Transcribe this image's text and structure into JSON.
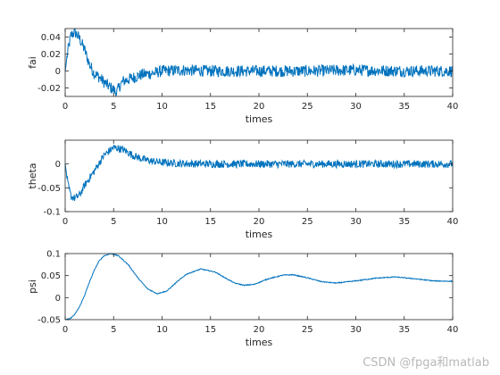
{
  "watermark": "CSDN @fpga和matlab",
  "chart_data": [
    {
      "type": "line",
      "title": "",
      "xlabel": "times",
      "ylabel": "fai",
      "xlim": [
        0,
        40
      ],
      "ylim": [
        -0.03,
        0.05
      ],
      "xticks": [
        0,
        5,
        10,
        15,
        20,
        25,
        30,
        35,
        40
      ],
      "yticks": [
        -0.02,
        0,
        0.02,
        0.04
      ],
      "ytick_labels": [
        "-0.02",
        "0",
        "0.02",
        "0.04"
      ],
      "grid": false,
      "color": "#0072BD",
      "series": [
        {
          "x": [
            0,
            0.3,
            0.6,
            1,
            1.5,
            2,
            2.5,
            3,
            3.5,
            4,
            4.5,
            5,
            5.3,
            5.6,
            6,
            7,
            8,
            9,
            10,
            12,
            15,
            20,
            25,
            30,
            35,
            40
          ],
          "values": [
            0,
            0.025,
            0.042,
            0.046,
            0.038,
            0.025,
            0.008,
            -0.003,
            -0.007,
            -0.013,
            -0.018,
            -0.022,
            -0.026,
            -0.018,
            -0.012,
            -0.008,
            -0.004,
            -0.003,
            0.0,
            0.001,
            0.0,
            0.0,
            0.0,
            0.001,
            0.0,
            0.0
          ],
          "noise_amplitude": 0.007
        }
      ]
    },
    {
      "type": "line",
      "title": "",
      "xlabel": "times",
      "ylabel": "theta",
      "xlim": [
        0,
        40
      ],
      "ylim": [
        -0.1,
        0.05
      ],
      "xticks": [
        0,
        5,
        10,
        15,
        20,
        25,
        30,
        35,
        40
      ],
      "yticks": [
        -0.1,
        -0.05,
        0
      ],
      "ytick_labels": [
        "-0.1",
        "-0.05",
        "0"
      ],
      "grid": false,
      "color": "#0072BD",
      "series": [
        {
          "x": [
            0,
            0.3,
            0.6,
            1,
            1.5,
            2,
            3,
            4,
            5,
            6,
            7,
            8,
            9,
            10,
            12,
            15,
            20,
            25,
            30,
            35,
            40
          ],
          "values": [
            0,
            -0.045,
            -0.068,
            -0.072,
            -0.065,
            -0.045,
            -0.015,
            0.018,
            0.035,
            0.03,
            0.018,
            0.01,
            0.006,
            0.003,
            0.001,
            0.0,
            0.0,
            0.0,
            0.0,
            0.0,
            0.0
          ],
          "noise_amplitude": 0.008
        }
      ]
    },
    {
      "type": "line",
      "title": "",
      "xlabel": "times",
      "ylabel": "psi",
      "xlim": [
        0,
        40
      ],
      "ylim": [
        -0.05,
        0.1
      ],
      "xticks": [
        0,
        5,
        10,
        15,
        20,
        25,
        30,
        35,
        40
      ],
      "yticks": [
        -0.05,
        0,
        0.05,
        0.1
      ],
      "ytick_labels": [
        "-0.05",
        "0",
        "0.05",
        "0.1"
      ],
      "grid": false,
      "color": "#0072BD",
      "series": [
        {
          "x": [
            0,
            0.5,
            1,
            1.5,
            2,
            2.5,
            3,
            3.5,
            4,
            4.7,
            5.5,
            6.5,
            7.5,
            8.5,
            9.5,
            10.5,
            11.5,
            12.5,
            14,
            15.5,
            16.5,
            17.5,
            18.5,
            19.5,
            21,
            22.5,
            23.5,
            25,
            26.5,
            28,
            30,
            32,
            34,
            36,
            38,
            40
          ],
          "values": [
            -0.05,
            -0.048,
            -0.038,
            -0.02,
            0.005,
            0.035,
            0.062,
            0.083,
            0.095,
            0.1,
            0.095,
            0.075,
            0.045,
            0.02,
            0.009,
            0.015,
            0.035,
            0.053,
            0.065,
            0.058,
            0.045,
            0.033,
            0.028,
            0.03,
            0.043,
            0.051,
            0.052,
            0.045,
            0.036,
            0.033,
            0.038,
            0.044,
            0.047,
            0.043,
            0.038,
            0.037
          ],
          "noise_amplitude": 0.001
        }
      ]
    }
  ]
}
